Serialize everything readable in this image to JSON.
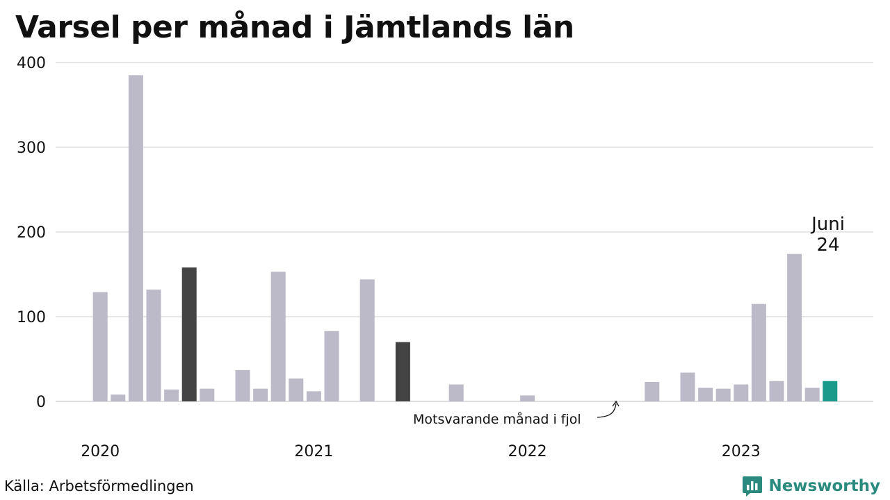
{
  "title": "Varsel per månad i Jämtlands län",
  "source": "Källa: Arbetsförmedlingen",
  "brand": {
    "name": "Newsworthy",
    "icon": "newsworthy-logo-icon",
    "color": "#2b8a7e"
  },
  "annotations": {
    "previous_year_note": "Motsvarande månad i fjol",
    "callout_month": "Juni",
    "callout_value": "24"
  },
  "colors": {
    "bar": "#bcbac9",
    "highlight_same_month": "#444444",
    "current": "#1a9a8a",
    "grid": "#dddddd"
  },
  "chart_data": {
    "type": "bar",
    "title": "Varsel per månad i Jämtlands län",
    "xlabel": "",
    "ylabel": "",
    "ylim": [
      0,
      400
    ],
    "yticks": [
      0,
      100,
      200,
      300,
      400
    ],
    "grid": true,
    "x_start": "2020-01",
    "year_labels": [
      "2020",
      "2021",
      "2022",
      "2023"
    ],
    "categories": [
      "2020-01",
      "2020-02",
      "2020-03",
      "2020-04",
      "2020-05",
      "2020-06",
      "2020-07",
      "2020-08",
      "2020-09",
      "2020-10",
      "2020-11",
      "2020-12",
      "2021-01",
      "2021-02",
      "2021-03",
      "2021-04",
      "2021-05",
      "2021-06",
      "2021-07",
      "2021-08",
      "2021-09",
      "2021-10",
      "2021-11",
      "2021-12",
      "2022-01",
      "2022-02",
      "2022-03",
      "2022-04",
      "2022-05",
      "2022-06",
      "2022-07",
      "2022-08",
      "2022-09",
      "2022-10",
      "2022-11",
      "2022-12",
      "2023-01",
      "2023-02",
      "2023-03",
      "2023-04",
      "2023-05",
      "2023-06"
    ],
    "values": [
      129,
      8,
      385,
      132,
      14,
      158,
      15,
      0,
      37,
      15,
      153,
      27,
      12,
      83,
      0,
      144,
      0,
      70,
      0,
      0,
      20,
      0,
      0,
      0,
      7,
      0,
      0,
      0,
      0,
      0,
      0,
      23,
      0,
      34,
      16,
      15,
      20,
      115,
      24,
      174,
      16,
      24
    ],
    "highlight_same_month_indices": [
      5,
      17
    ],
    "current_index": 41
  }
}
